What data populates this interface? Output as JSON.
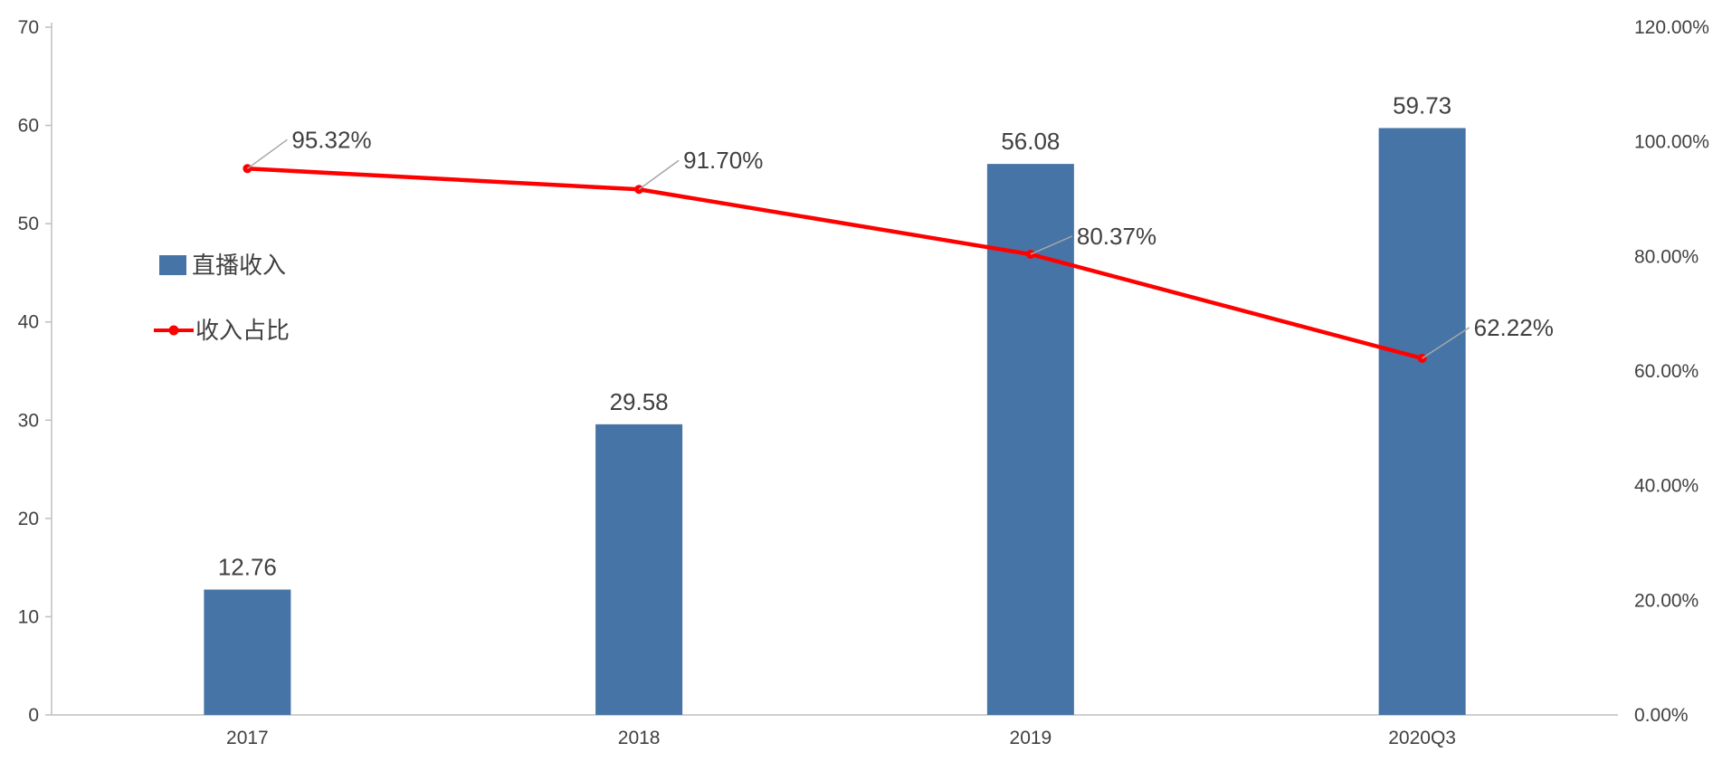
{
  "chart_data": {
    "type": "combo",
    "title": "",
    "categories": [
      "2017",
      "2018",
      "2019",
      "2020Q3"
    ],
    "series": [
      {
        "name": "直播收入",
        "type": "bar",
        "axis": "left",
        "color": "#4674a6",
        "values": [
          12.76,
          29.58,
          56.08,
          59.73
        ],
        "value_labels": [
          "12.76",
          "29.58",
          "56.08",
          "59.73"
        ]
      },
      {
        "name": "收入占比",
        "type": "line",
        "axis": "right",
        "color": "#ff0000",
        "values": [
          95.32,
          91.7,
          80.37,
          62.22
        ],
        "value_labels": [
          "95.32%",
          "91.70%",
          "80.37%",
          "62.22%"
        ]
      }
    ],
    "left_axis": {
      "min": 0,
      "max": 70,
      "step": 10,
      "ticks": [
        "0",
        "10",
        "20",
        "30",
        "40",
        "50",
        "60",
        "70"
      ]
    },
    "right_axis": {
      "min": 0,
      "max": 120,
      "step": 20,
      "ticks": [
        "0.00%",
        "20.00%",
        "40.00%",
        "60.00%",
        "80.00%",
        "100.00%",
        "120.00%"
      ]
    },
    "legend": [
      {
        "label": "直播收入",
        "marker": "bar-swatch"
      },
      {
        "label": "收入占比",
        "marker": "line-marker"
      }
    ],
    "legend_position": "inside-left",
    "grid": false,
    "colors": {
      "axis_line": "#bfbfbf",
      "tick_text": "#404040",
      "leader_line": "#a6a6a6",
      "label_text": "#404040"
    }
  }
}
